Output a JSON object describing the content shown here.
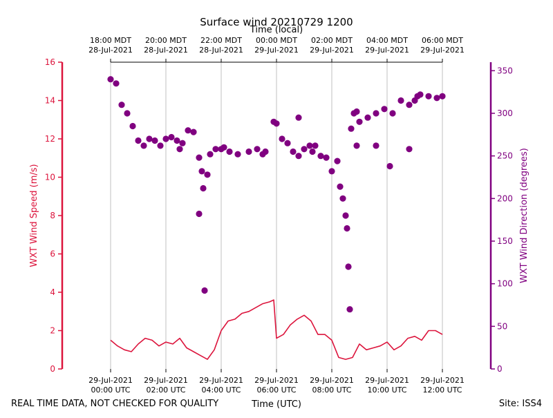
{
  "chart_data": {
    "type": "line+scatter",
    "title": "Surface wind 20210729 1200",
    "top_axis_label": "Time (local)",
    "bottom_axis_label": "Time (UTC)",
    "x_range_hours_utc": [
      0,
      12
    ],
    "left_axis": {
      "label": "WXT Wind Speed (m/s)",
      "range": [
        0,
        16
      ],
      "ticks": [
        0,
        2,
        4,
        6,
        8,
        10,
        12,
        14,
        16
      ],
      "color": "#dc143c"
    },
    "right_axis": {
      "label": "WXT Wind Direction (degrees)",
      "range": [
        0,
        360
      ],
      "ticks": [
        0,
        50,
        100,
        150,
        200,
        250,
        300,
        350
      ],
      "color": "#800080"
    },
    "bottom_ticks": [
      {
        "hour": 0,
        "line1": "29-Jul-2021",
        "line2": "00:00 UTC"
      },
      {
        "hour": 2,
        "line1": "29-Jul-2021",
        "line2": "02:00 UTC"
      },
      {
        "hour": 4,
        "line1": "29-Jul-2021",
        "line2": "04:00 UTC"
      },
      {
        "hour": 6,
        "line1": "29-Jul-2021",
        "line2": "06:00 UTC"
      },
      {
        "hour": 8,
        "line1": "29-Jul-2021",
        "line2": "08:00 UTC"
      },
      {
        "hour": 10,
        "line1": "29-Jul-2021",
        "line2": "10:00 UTC"
      },
      {
        "hour": 12,
        "line1": "29-Jul-2021",
        "line2": "12:00 UTC"
      }
    ],
    "top_ticks": [
      {
        "hour": 0,
        "line1": "18:00 MDT",
        "line2": "28-Jul-2021"
      },
      {
        "hour": 2,
        "line1": "20:00 MDT",
        "line2": "28-Jul-2021"
      },
      {
        "hour": 4,
        "line1": "22:00 MDT",
        "line2": "28-Jul-2021"
      },
      {
        "hour": 6,
        "line1": "00:00 MDT",
        "line2": "29-Jul-2021"
      },
      {
        "hour": 8,
        "line1": "02:00 MDT",
        "line2": "29-Jul-2021"
      },
      {
        "hour": 10,
        "line1": "04:00 MDT",
        "line2": "29-Jul-2021"
      },
      {
        "hour": 12,
        "line1": "06:00 MDT",
        "line2": "29-Jul-2021"
      }
    ],
    "speed_series": {
      "name": "WXT Wind Speed (m/s)",
      "hours": [
        0,
        0.25,
        0.5,
        0.75,
        1,
        1.25,
        1.5,
        1.75,
        2,
        2.25,
        2.5,
        2.75,
        3,
        3.25,
        3.5,
        3.75,
        4,
        4.25,
        4.5,
        4.75,
        5,
        5.25,
        5.5,
        5.75,
        5.9,
        6,
        6.25,
        6.5,
        6.75,
        7,
        7.25,
        7.5,
        7.75,
        8,
        8.25,
        8.5,
        8.75,
        9,
        9.25,
        9.5,
        9.75,
        10,
        10.25,
        10.5,
        10.75,
        11,
        11.25,
        11.5,
        11.75,
        12
      ],
      "values": [
        1.5,
        1.2,
        1.0,
        0.9,
        1.3,
        1.6,
        1.5,
        1.2,
        1.4,
        1.3,
        1.6,
        1.1,
        0.9,
        0.7,
        0.5,
        1.0,
        2.0,
        2.5,
        2.6,
        2.9,
        3.0,
        3.2,
        3.4,
        3.5,
        3.6,
        1.6,
        1.8,
        2.3,
        2.6,
        2.8,
        2.5,
        1.8,
        1.8,
        1.5,
        0.6,
        0.5,
        0.6,
        1.3,
        1.0,
        1.1,
        1.2,
        1.4,
        1.0,
        1.2,
        1.6,
        1.7,
        1.5,
        2.0,
        2.0,
        1.8
      ]
    },
    "direction_series": {
      "name": "WXT Wind Direction (degrees)",
      "hours": [
        0,
        0.2,
        0.4,
        0.6,
        0.8,
        1.0,
        1.2,
        1.4,
        1.6,
        1.8,
        2.0,
        2.2,
        2.4,
        2.6,
        2.8,
        3.0,
        3.2,
        3.3,
        3.35,
        3.4,
        3.5,
        3.6,
        3.8,
        4.0,
        4.3,
        4.6,
        5.0,
        5.3,
        5.6,
        5.9,
        6.0,
        6.2,
        6.4,
        6.6,
        6.8,
        7.0,
        7.2,
        7.4,
        7.6,
        7.8,
        8.0,
        8.2,
        8.3,
        8.4,
        8.5,
        8.55,
        8.6,
        8.65,
        8.7,
        8.8,
        8.9,
        9.0,
        9.3,
        9.6,
        9.9,
        10.2,
        10.5,
        10.8,
        11.0,
        11.2,
        11.5,
        11.8,
        12.0,
        2.5,
        3.2,
        4.1,
        5.5,
        6.8,
        7.3,
        8.9,
        9.6,
        10.1,
        10.8,
        11.1
      ],
      "values": [
        340,
        335,
        310,
        300,
        285,
        268,
        262,
        270,
        268,
        262,
        270,
        272,
        268,
        265,
        280,
        278,
        248,
        232,
        212,
        92,
        228,
        252,
        258,
        258,
        255,
        252,
        255,
        258,
        255,
        290,
        288,
        270,
        265,
        255,
        250,
        258,
        262,
        262,
        250,
        248,
        232,
        244,
        214,
        200,
        180,
        165,
        120,
        70,
        282,
        300,
        302,
        290,
        295,
        300,
        305,
        300,
        315,
        310,
        315,
        322,
        320,
        318,
        320,
        258,
        182,
        260,
        252,
        295,
        255,
        262,
        262,
        238,
        258,
        320
      ]
    },
    "footer_left": "REAL TIME DATA, NOT CHECKED FOR QUALITY",
    "footer_right": "Site: ISS4"
  }
}
